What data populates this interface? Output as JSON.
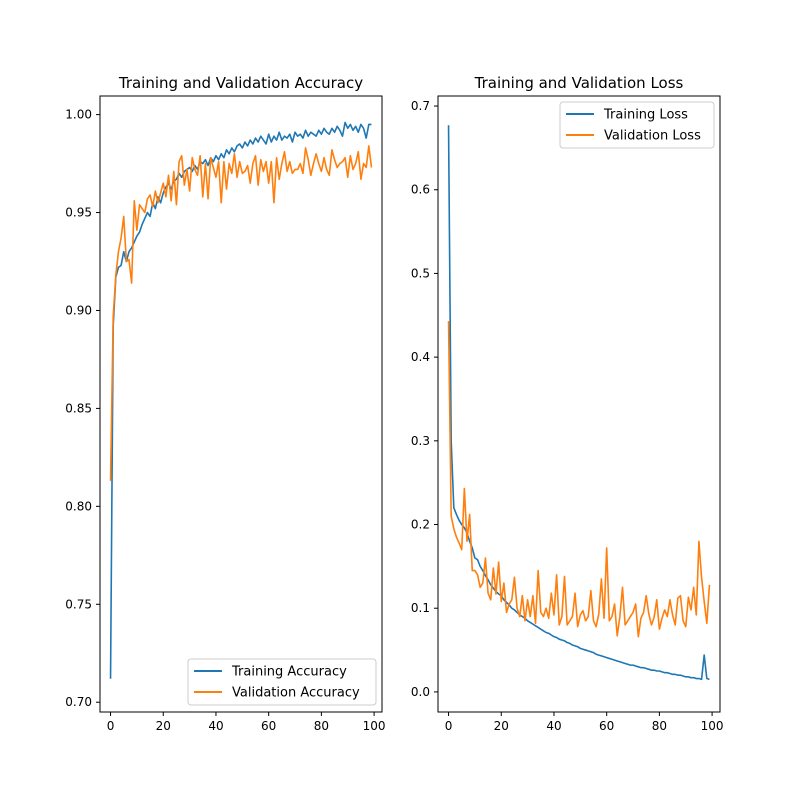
{
  "chart_data": [
    {
      "type": "line",
      "title": "Training and Validation Accuracy",
      "xlabel": "",
      "ylabel": "",
      "xlim": [
        -4,
        103
      ],
      "ylim": [
        0.695,
        1.0095
      ],
      "xticks": [
        0,
        20,
        40,
        60,
        80,
        100
      ],
      "xtick_labels": [
        "0",
        "20",
        "40",
        "60",
        "80",
        "100"
      ],
      "yticks": [
        0.7,
        0.75,
        0.8,
        0.85,
        0.9,
        0.95,
        1.0
      ],
      "ytick_labels": [
        "0.70",
        "0.75",
        "0.80",
        "0.85",
        "0.90",
        "0.95",
        "1.00"
      ],
      "legend_position": "lower-right",
      "series": [
        {
          "name": "Training Accuracy",
          "color": "#1f77b4",
          "values": [
            0.712,
            0.892,
            0.917,
            0.922,
            0.923,
            0.93,
            0.925,
            0.93,
            0.932,
            0.935,
            0.938,
            0.94,
            0.944,
            0.947,
            0.95,
            0.948,
            0.955,
            0.952,
            0.958,
            0.955,
            0.96,
            0.963,
            0.965,
            0.962,
            0.966,
            0.967,
            0.97,
            0.968,
            0.971,
            0.972,
            0.973,
            0.971,
            0.974,
            0.972,
            0.976,
            0.975,
            0.977,
            0.974,
            0.978,
            0.976,
            0.979,
            0.977,
            0.98,
            0.978,
            0.982,
            0.98,
            0.983,
            0.981,
            0.984,
            0.985,
            0.983,
            0.986,
            0.984,
            0.987,
            0.985,
            0.988,
            0.986,
            0.989,
            0.987,
            0.985,
            0.99,
            0.986,
            0.989,
            0.987,
            0.991,
            0.987,
            0.989,
            0.988,
            0.99,
            0.986,
            0.991,
            0.989,
            0.99,
            0.988,
            0.992,
            0.989,
            0.991,
            0.99,
            0.989,
            0.992,
            0.99,
            0.993,
            0.991,
            0.99,
            0.993,
            0.991,
            0.994,
            0.992,
            0.989,
            0.996,
            0.993,
            0.995,
            0.992,
            0.994,
            0.991,
            0.995,
            0.993,
            0.988,
            0.995,
            0.995
          ]
        },
        {
          "name": "Validation Accuracy",
          "color": "#ff7f0e",
          "values": [
            0.813,
            0.897,
            0.918,
            0.93,
            0.937,
            0.948,
            0.925,
            0.926,
            0.914,
            0.956,
            0.941,
            0.954,
            0.952,
            0.95,
            0.957,
            0.959,
            0.953,
            0.961,
            0.955,
            0.96,
            0.965,
            0.958,
            0.969,
            0.956,
            0.971,
            0.954,
            0.976,
            0.979,
            0.964,
            0.972,
            0.961,
            0.978,
            0.972,
            0.969,
            0.979,
            0.958,
            0.975,
            0.957,
            0.978,
            0.973,
            0.968,
            0.976,
            0.955,
            0.976,
            0.962,
            0.975,
            0.97,
            0.98,
            0.968,
            0.976,
            0.97,
            0.971,
            0.974,
            0.965,
            0.975,
            0.979,
            0.964,
            0.977,
            0.971,
            0.976,
            0.965,
            0.976,
            0.955,
            0.978,
            0.967,
            0.975,
            0.981,
            0.971,
            0.976,
            0.97,
            0.972,
            0.972,
            0.975,
            0.97,
            0.983,
            0.977,
            0.969,
            0.975,
            0.98,
            0.975,
            0.971,
            0.978,
            0.972,
            0.969,
            0.982,
            0.977,
            0.973,
            0.975,
            0.976,
            0.978,
            0.968,
            0.979,
            0.972,
            0.975,
            0.981,
            0.967,
            0.975,
            0.973,
            0.984,
            0.973
          ]
        }
      ]
    },
    {
      "type": "line",
      "title": "Training and Validation Loss",
      "xlabel": "",
      "ylabel": "",
      "xlim": [
        -4,
        103
      ],
      "ylim": [
        -0.024,
        0.712
      ],
      "xticks": [
        0,
        20,
        40,
        60,
        80,
        100
      ],
      "xtick_labels": [
        "0",
        "20",
        "40",
        "60",
        "80",
        "100"
      ],
      "yticks": [
        0.0,
        0.1,
        0.2,
        0.3,
        0.4,
        0.5,
        0.6,
        0.7
      ],
      "ytick_labels": [
        "0.0",
        "0.1",
        "0.2",
        "0.3",
        "0.4",
        "0.5",
        "0.6",
        "0.7"
      ],
      "legend_position": "upper-right",
      "series": [
        {
          "name": "Training Loss",
          "color": "#1f77b4",
          "values": [
            0.677,
            0.3,
            0.22,
            0.212,
            0.205,
            0.2,
            0.196,
            0.19,
            0.18,
            0.172,
            0.16,
            0.158,
            0.15,
            0.145,
            0.139,
            0.134,
            0.128,
            0.124,
            0.12,
            0.117,
            0.115,
            0.11,
            0.107,
            0.104,
            0.1,
            0.098,
            0.095,
            0.092,
            0.09,
            0.088,
            0.085,
            0.083,
            0.081,
            0.079,
            0.077,
            0.075,
            0.073,
            0.071,
            0.07,
            0.068,
            0.066,
            0.065,
            0.063,
            0.062,
            0.061,
            0.059,
            0.058,
            0.056,
            0.055,
            0.054,
            0.052,
            0.051,
            0.05,
            0.049,
            0.048,
            0.047,
            0.045,
            0.044,
            0.043,
            0.042,
            0.041,
            0.04,
            0.039,
            0.038,
            0.037,
            0.036,
            0.035,
            0.034,
            0.033,
            0.032,
            0.032,
            0.031,
            0.03,
            0.029,
            0.029,
            0.028,
            0.027,
            0.026,
            0.026,
            0.025,
            0.025,
            0.024,
            0.023,
            0.023,
            0.022,
            0.021,
            0.021,
            0.02,
            0.02,
            0.019,
            0.018,
            0.018,
            0.017,
            0.017,
            0.016,
            0.016,
            0.015,
            0.044,
            0.016,
            0.015
          ]
        },
        {
          "name": "Validation Loss",
          "color": "#ff7f0e",
          "values": [
            0.443,
            0.21,
            0.195,
            0.185,
            0.178,
            0.17,
            0.243,
            0.18,
            0.212,
            0.145,
            0.145,
            0.14,
            0.125,
            0.13,
            0.16,
            0.118,
            0.11,
            0.148,
            0.117,
            0.155,
            0.108,
            0.13,
            0.095,
            0.105,
            0.11,
            0.137,
            0.1,
            0.09,
            0.115,
            0.085,
            0.11,
            0.09,
            0.115,
            0.082,
            0.145,
            0.095,
            0.09,
            0.1,
            0.088,
            0.118,
            0.092,
            0.14,
            0.08,
            0.09,
            0.138,
            0.08,
            0.085,
            0.09,
            0.118,
            0.078,
            0.092,
            0.097,
            0.085,
            0.09,
            0.121,
            0.085,
            0.078,
            0.093,
            0.135,
            0.088,
            0.172,
            0.085,
            0.09,
            0.105,
            0.067,
            0.09,
            0.125,
            0.08,
            0.085,
            0.09,
            0.095,
            0.105,
            0.066,
            0.088,
            0.095,
            0.115,
            0.093,
            0.08,
            0.089,
            0.11,
            0.075,
            0.088,
            0.098,
            0.09,
            0.11,
            0.092,
            0.08,
            0.112,
            0.115,
            0.085,
            0.078,
            0.113,
            0.098,
            0.125,
            0.092,
            0.18,
            0.137,
            0.108,
            0.082,
            0.128
          ]
        }
      ]
    }
  ]
}
